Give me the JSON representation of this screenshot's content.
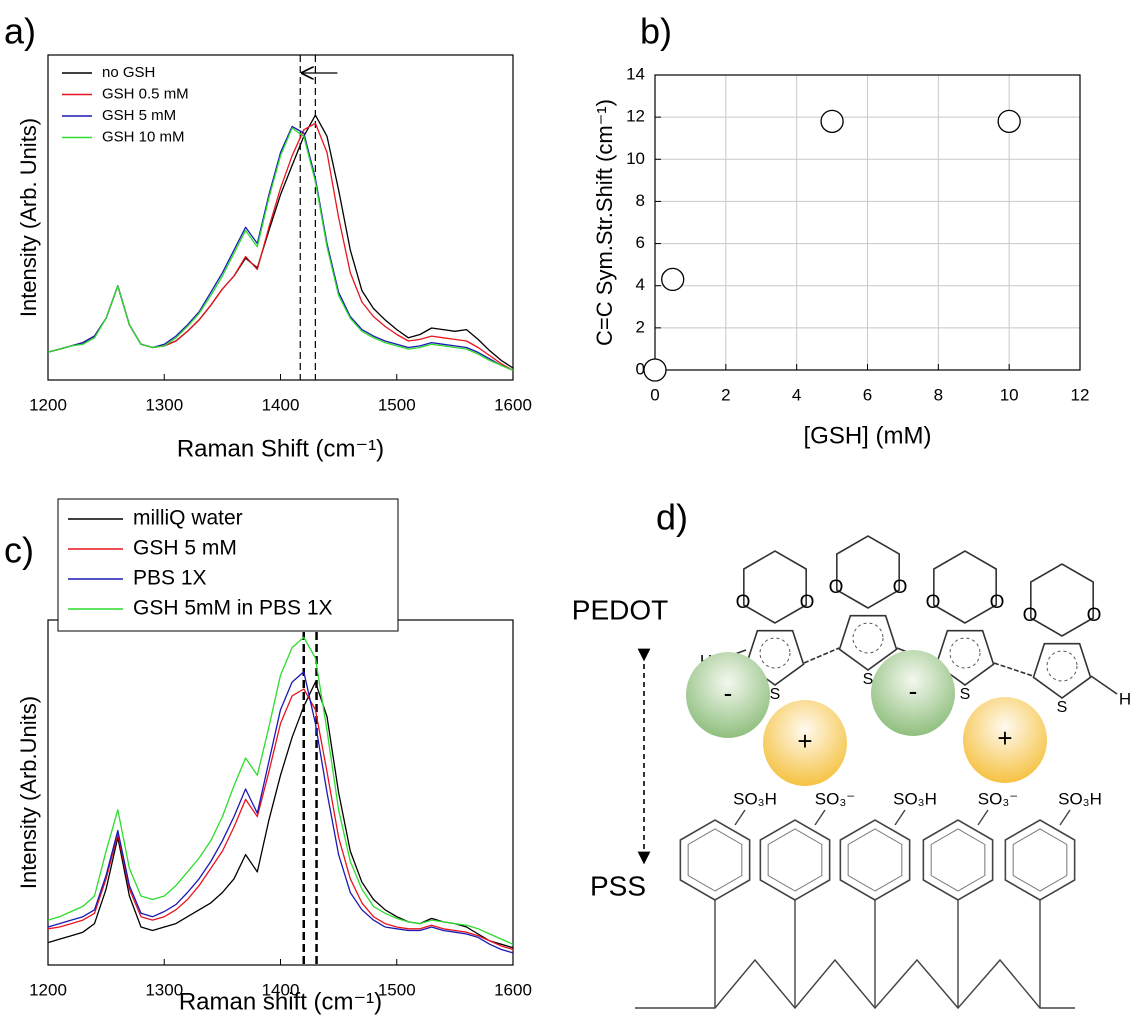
{
  "chart_data": [
    {
      "type": "line",
      "panel_label": "a)",
      "xlabel": "Raman Shift (cm⁻¹)",
      "ylabel": "Intensity (Arb. Units)",
      "x": [
        1200,
        1210,
        1220,
        1230,
        1240,
        1250,
        1260,
        1270,
        1280,
        1290,
        1300,
        1310,
        1320,
        1330,
        1340,
        1350,
        1360,
        1370,
        1380,
        1390,
        1400,
        1410,
        1420,
        1430,
        1440,
        1450,
        1460,
        1470,
        1480,
        1490,
        1500,
        1510,
        1520,
        1530,
        1540,
        1550,
        1560,
        1570,
        1580,
        1590,
        1600
      ],
      "xlim": [
        1200,
        1600
      ],
      "xticks": [
        1200,
        1300,
        1400,
        1500,
        1600
      ],
      "ylim": [
        0,
        100
      ],
      "vlines": [
        1417,
        1430
      ],
      "legend": "upper left",
      "series": [
        {
          "name": "no GSH",
          "color": "#000000",
          "values": [
            8.6,
            9.5,
            10.5,
            11.4,
            13.5,
            19,
            29,
            17,
            11,
            10,
            10.5,
            12,
            15,
            18.5,
            23,
            28,
            32,
            37.5,
            34.5,
            46,
            57,
            66,
            75,
            81.5,
            75,
            58.5,
            40,
            27.5,
            22,
            18.5,
            15.5,
            13,
            14,
            16,
            15.5,
            15,
            15.5,
            12.5,
            9,
            6,
            3.7
          ]
        },
        {
          "name": "GSH 0.5 mM",
          "color": "#e8141e",
          "values": [
            8.6,
            9.5,
            10.5,
            11.5,
            13.5,
            19,
            29,
            17,
            11,
            10,
            10.5,
            12,
            15,
            18.5,
            23,
            28,
            32,
            38,
            34,
            47,
            59,
            69,
            77,
            79,
            70,
            50,
            33,
            24,
            19.5,
            16.5,
            14,
            12,
            12.5,
            13.5,
            13,
            12.5,
            12,
            10,
            7.5,
            5,
            3
          ]
        },
        {
          "name": "GSH 5 mM",
          "color": "#1a1ab4",
          "values": [
            8.6,
            9.5,
            10.5,
            11.5,
            13.5,
            19,
            29,
            17,
            11,
            10,
            11,
            13.5,
            17,
            21,
            27,
            33,
            40,
            47,
            42,
            57,
            70,
            78,
            76,
            62,
            42,
            27,
            19.5,
            15.5,
            13.5,
            12,
            11,
            10,
            10.5,
            11.5,
            11,
            10.5,
            10,
            8.5,
            6.5,
            4.5,
            3
          ]
        },
        {
          "name": "GSH 10 mM",
          "color": "#2edc2e",
          "values": [
            8.6,
            9.5,
            10.5,
            11,
            13,
            19,
            29,
            17,
            11,
            10,
            10.5,
            13,
            16.5,
            20.5,
            26,
            32,
            39,
            46,
            41,
            56,
            69,
            77.5,
            75,
            61,
            41,
            26,
            19,
            15,
            13,
            11.5,
            10.5,
            9.5,
            10,
            11,
            10.5,
            10,
            9.5,
            8,
            6,
            4.5,
            3
          ]
        }
      ]
    },
    {
      "type": "scatter",
      "panel_label": "b)",
      "xlabel": "[GSH] (mM)",
      "ylabel": "C=C Sym.Str.Shift (cm⁻¹)",
      "x": [
        0,
        0.5,
        5,
        10
      ],
      "values": [
        0,
        4.3,
        11.8,
        11.8
      ],
      "xlim": [
        0,
        12
      ],
      "xticks": [
        0,
        2,
        4,
        6,
        8,
        10,
        12
      ],
      "ylim": [
        0,
        14
      ],
      "yticks": [
        0,
        2,
        4,
        6,
        8,
        10,
        12,
        14
      ],
      "grid": true
    },
    {
      "type": "line",
      "panel_label": "c)",
      "xlabel": "Raman shift (cm⁻¹)",
      "ylabel": "Intensity (Arb.Units)",
      "x": [
        1200,
        1210,
        1220,
        1230,
        1240,
        1250,
        1260,
        1270,
        1280,
        1290,
        1300,
        1310,
        1320,
        1330,
        1340,
        1350,
        1360,
        1370,
        1380,
        1390,
        1400,
        1410,
        1420,
        1430,
        1440,
        1450,
        1460,
        1470,
        1480,
        1490,
        1500,
        1510,
        1520,
        1530,
        1540,
        1550,
        1560,
        1570,
        1580,
        1590,
        1600
      ],
      "xlim": [
        1200,
        1600
      ],
      "xticks": [
        1200,
        1300,
        1400,
        1500,
        1600
      ],
      "ylim": [
        0,
        100
      ],
      "vlines": [
        1420,
        1431
      ],
      "legend": "top left",
      "series": [
        {
          "name": "milliQ water",
          "color": "#000000",
          "values": [
            6.5,
            7.5,
            8.5,
            9.5,
            12,
            22,
            37,
            20,
            11,
            10,
            11,
            12,
            14,
            16,
            18,
            21,
            25,
            32,
            27,
            42,
            55,
            66,
            75,
            82,
            72,
            50,
            33,
            24,
            19,
            16,
            14,
            12.5,
            12,
            13.5,
            12.5,
            12,
            11,
            9,
            7,
            6,
            5
          ]
        },
        {
          "name": "GSH 5 mM",
          "color": "#e8141e",
          "values": [
            10.5,
            11,
            12,
            13,
            15,
            25,
            38,
            22,
            14,
            13,
            14,
            16,
            19,
            23,
            28,
            33,
            40,
            48,
            43,
            56,
            70,
            78,
            80,
            74,
            56,
            37,
            25,
            18,
            14,
            12,
            11,
            10.5,
            10.5,
            11.5,
            10.5,
            10,
            9.5,
            8.5,
            7,
            5.5,
            4.5
          ]
        },
        {
          "name": "PBS 1X",
          "color": "#1a1ab4",
          "values": [
            11,
            12,
            13,
            14,
            16,
            26,
            39,
            23,
            15,
            14,
            15.5,
            17.5,
            21,
            25,
            30,
            36,
            43,
            51,
            44,
            59,
            74,
            82,
            85,
            70,
            50,
            32,
            21,
            16,
            13,
            11,
            10.5,
            10,
            10,
            11,
            10,
            9.5,
            9,
            8,
            6,
            4.5,
            3.5
          ]
        },
        {
          "name": "GSH 5mM in PBS 1X",
          "color": "#2edc2e",
          "values": [
            13,
            14,
            15.5,
            17,
            20,
            33,
            45,
            28,
            20,
            19,
            20,
            23,
            27,
            31,
            36,
            43,
            52,
            60,
            55,
            69,
            84,
            92,
            95,
            89,
            68,
            45,
            30,
            22,
            17,
            15,
            13.5,
            12.5,
            12,
            13,
            12.5,
            12,
            11.5,
            10.5,
            9,
            7.5,
            6
          ]
        }
      ]
    }
  ],
  "diagram": {
    "panel_label": "d)",
    "pedot": "PEDOT",
    "pss": "PSS",
    "oxygen": "O",
    "sulfur": "S",
    "hydrogen": "H",
    "sulfonic_acid": "SO₃H",
    "sulfonate": "SO₃⁻",
    "anion": "-",
    "cation": "+"
  }
}
